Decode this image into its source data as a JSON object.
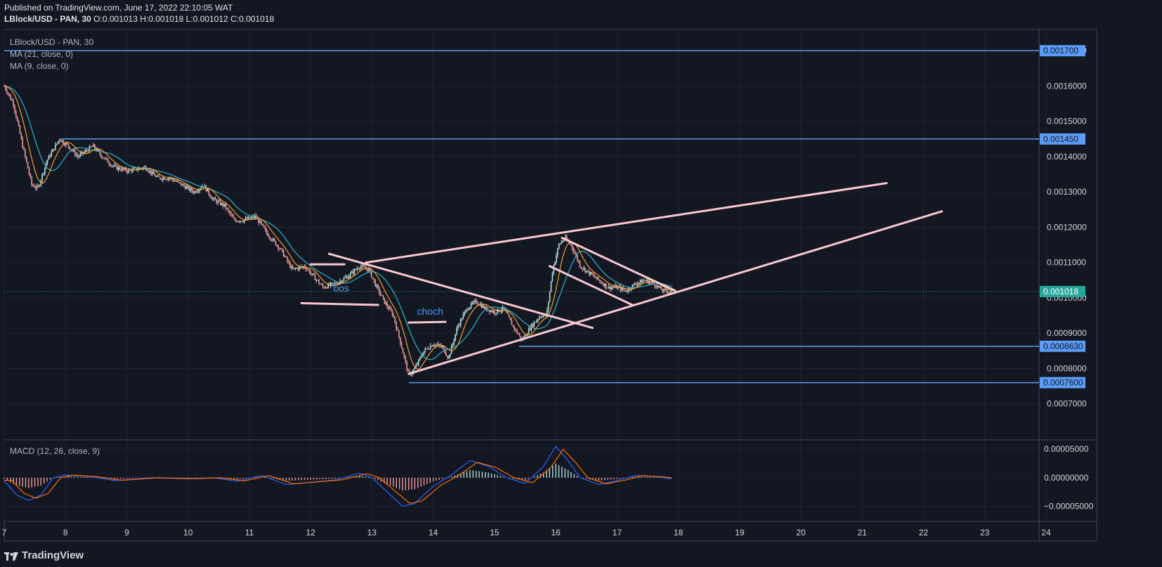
{
  "header": {
    "published": "Published on TradingView.com, June 17, 2022 22:10:05 WAT",
    "symbol": "LBlock/USD - PAN, 30",
    "o_label": "O:",
    "o_value": "0.001013",
    "h_label": "H:",
    "h_value": "0.001018",
    "l_label": "L:",
    "l_value": "0.001012",
    "c_label": "C:",
    "c_value": "0.001018"
  },
  "legend": {
    "symbol": "LBlock/USD - PAN, 30",
    "ma21": "MA (21, close, 0)",
    "ma9": "MA (9, close, 0)",
    "macd": "MACD (12, 26, close, 9)"
  },
  "brand": {
    "name": "TradingView"
  },
  "colors": {
    "background": "#131722",
    "grid": "#1f2330",
    "level_line": "#5b9cf6",
    "trendline": "#f8c8d0",
    "price_badge": "#26a69a",
    "ma21": "#2fb6c9",
    "ma9": "#f0a030",
    "macd_line": "#2962ff",
    "signal_line": "#ff6d00",
    "hist_up": "#b2dfdb",
    "hist_down": "#ef9a9a"
  },
  "chart_data": {
    "type": "candlestick",
    "price_axis": {
      "range": [
        0.0006,
        0.00176
      ],
      "ticks": [
        "0.0017000",
        "0.0016000",
        "0.0015000",
        "0.0014000",
        "0.0013000",
        "0.0012000",
        "0.0011000",
        "0.0010000",
        "0.0009000",
        "0.0008000",
        "0.0007000"
      ],
      "tick_values": [
        0.0017,
        0.0016,
        0.0015,
        0.0014,
        0.0013,
        0.0012,
        0.0011,
        0.001,
        0.0009,
        0.0008,
        0.0007
      ]
    },
    "time_axis": {
      "range_days": [
        7,
        25
      ],
      "labels": [
        "7",
        "8",
        "9",
        "10",
        "11",
        "12",
        "13",
        "14",
        "15",
        "16",
        "17",
        "18",
        "19",
        "20",
        "21",
        "22",
        "23",
        "24"
      ],
      "label_values": [
        7,
        8,
        9,
        10,
        11,
        12,
        13,
        14,
        15,
        16,
        17,
        18,
        19,
        20,
        21,
        22,
        23,
        24
      ]
    },
    "macd_axis": {
      "range": [
        -7.5e-05,
        6.5e-05
      ],
      "ticks": [
        "0.00005000",
        "0.00000000",
        "−0.00005000"
      ],
      "tick_values": [
        5e-05,
        0,
        -5e-05
      ]
    },
    "current_price": {
      "label": "0.001018",
      "value": 0.001018
    },
    "levels": [
      {
        "label": "0.001700",
        "value": 0.0017,
        "from_day": 7.0
      },
      {
        "label": "0.001450",
        "value": 0.00145,
        "from_day": 7.9
      },
      {
        "label": "0.0008630",
        "value": 0.000863,
        "from_day": 15.4
      },
      {
        "label": "0.0007600",
        "value": 0.00076,
        "from_day": 13.6
      }
    ],
    "trendlines": [
      {
        "from": [
          12.9,
          0.0011
        ],
        "to": [
          21.4,
          0.001325
        ]
      },
      {
        "from": [
          13.6,
          0.000785
        ],
        "to": [
          22.3,
          0.001245
        ]
      },
      {
        "from": [
          12.3,
          0.001125
        ],
        "to": [
          16.6,
          0.000915
        ]
      },
      {
        "from": [
          16.1,
          0.00117
        ],
        "to": [
          17.95,
          0.00102
        ]
      },
      {
        "from": [
          15.9,
          0.00109
        ],
        "to": [
          17.25,
          0.00098
        ]
      },
      {
        "from": [
          12.0,
          0.001095
        ],
        "to": [
          12.55,
          0.001095
        ]
      },
      {
        "from": [
          11.85,
          0.000985
        ],
        "to": [
          13.1,
          0.00098
        ]
      },
      {
        "from": [
          13.6,
          0.00093
        ],
        "to": [
          14.2,
          0.000932
        ]
      }
    ],
    "annotations": [
      {
        "text": "bos",
        "day": 12.5,
        "price": 0.001018
      },
      {
        "text": "choch",
        "day": 13.95,
        "price": 0.000952
      }
    ],
    "price_path": [
      [
        7.0,
        0.0016
      ],
      [
        7.15,
        0.00155
      ],
      [
        7.3,
        0.00143
      ],
      [
        7.45,
        0.00132
      ],
      [
        7.55,
        0.00131
      ],
      [
        7.7,
        0.00139
      ],
      [
        7.9,
        0.00145
      ],
      [
        8.05,
        0.00143
      ],
      [
        8.2,
        0.0014
      ],
      [
        8.45,
        0.00143
      ],
      [
        8.6,
        0.0014
      ],
      [
        8.8,
        0.00137
      ],
      [
        9.0,
        0.00136
      ],
      [
        9.3,
        0.00137
      ],
      [
        9.5,
        0.00134
      ],
      [
        9.7,
        0.00134
      ],
      [
        9.9,
        0.00132
      ],
      [
        10.1,
        0.0013
      ],
      [
        10.25,
        0.00132
      ],
      [
        10.4,
        0.00128
      ],
      [
        10.6,
        0.00126
      ],
      [
        10.75,
        0.00122
      ],
      [
        10.9,
        0.00122
      ],
      [
        11.1,
        0.00123
      ],
      [
        11.3,
        0.00118
      ],
      [
        11.5,
        0.00114
      ],
      [
        11.7,
        0.00108
      ],
      [
        11.9,
        0.00109
      ],
      [
        12.05,
        0.00106
      ],
      [
        12.2,
        0.00103
      ],
      [
        12.4,
        0.00104
      ],
      [
        12.6,
        0.00106
      ],
      [
        12.8,
        0.00109
      ],
      [
        12.95,
        0.00108
      ],
      [
        13.05,
        0.00104
      ],
      [
        13.2,
        0.00099
      ],
      [
        13.35,
        0.00095
      ],
      [
        13.5,
        0.00085
      ],
      [
        13.6,
        0.00078
      ],
      [
        13.7,
        0.0008
      ],
      [
        13.85,
        0.00085
      ],
      [
        14.0,
        0.00087
      ],
      [
        14.15,
        0.00086
      ],
      [
        14.25,
        0.00083
      ],
      [
        14.4,
        0.00092
      ],
      [
        14.55,
        0.00097
      ],
      [
        14.7,
        0.00099
      ],
      [
        14.85,
        0.00097
      ],
      [
        15.0,
        0.00096
      ],
      [
        15.15,
        0.00097
      ],
      [
        15.3,
        0.00092
      ],
      [
        15.45,
        0.00088
      ],
      [
        15.6,
        0.00092
      ],
      [
        15.75,
        0.00095
      ],
      [
        15.85,
        0.00095
      ],
      [
        15.95,
        0.00108
      ],
      [
        16.05,
        0.00115
      ],
      [
        16.15,
        0.00117
      ],
      [
        16.25,
        0.00115
      ],
      [
        16.4,
        0.00109
      ],
      [
        16.55,
        0.00107
      ],
      [
        16.7,
        0.00105
      ],
      [
        16.85,
        0.00103
      ],
      [
        17.0,
        0.00103
      ],
      [
        17.15,
        0.00102
      ],
      [
        17.3,
        0.00104
      ],
      [
        17.45,
        0.00105
      ],
      [
        17.6,
        0.00104
      ],
      [
        17.75,
        0.00102
      ],
      [
        17.9,
        0.001018
      ]
    ],
    "macd_path": [
      [
        7.0,
        -5e-06
      ],
      [
        7.2,
        -3e-05
      ],
      [
        7.4,
        -4e-05
      ],
      [
        7.6,
        -3e-05
      ],
      [
        7.8,
        0.0
      ],
      [
        8.0,
        5e-06
      ],
      [
        8.4,
        2e-06
      ],
      [
        8.8,
        -5e-06
      ],
      [
        9.4,
        0.0
      ],
      [
        10.0,
        -2e-06
      ],
      [
        10.4,
        0.0
      ],
      [
        10.8,
        -6e-06
      ],
      [
        11.2,
        4e-06
      ],
      [
        11.6,
        -1.2e-05
      ],
      [
        12.0,
        -8e-06
      ],
      [
        12.4,
        -4e-06
      ],
      [
        12.8,
        8e-06
      ],
      [
        13.0,
        0.0
      ],
      [
        13.2,
        -2e-05
      ],
      [
        13.5,
        -5e-05
      ],
      [
        13.7,
        -4.5e-05
      ],
      [
        14.0,
        -1.5e-05
      ],
      [
        14.3,
        5e-06
      ],
      [
        14.6,
        3e-05
      ],
      [
        14.9,
        2e-05
      ],
      [
        15.2,
        0.0
      ],
      [
        15.5,
        -1e-05
      ],
      [
        15.8,
        2e-05
      ],
      [
        16.0,
        5.5e-05
      ],
      [
        16.2,
        3e-05
      ],
      [
        16.4,
        0.0
      ],
      [
        16.7,
        -1.2e-05
      ],
      [
        17.0,
        -5e-06
      ],
      [
        17.3,
        4e-06
      ],
      [
        17.6,
        2e-06
      ],
      [
        17.9,
        -2e-06
      ]
    ]
  }
}
